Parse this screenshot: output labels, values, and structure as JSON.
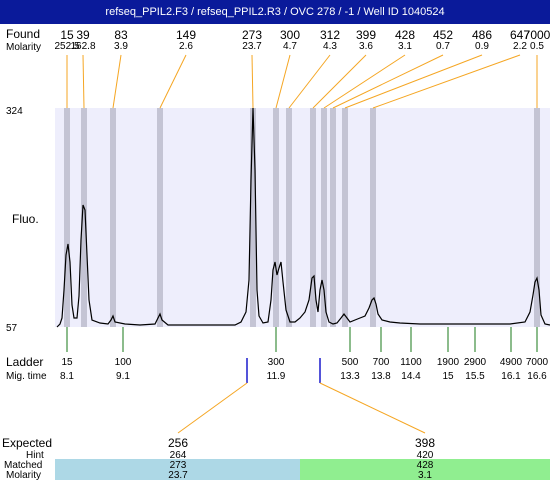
{
  "title": "refseq_PPIL2.F3 / refseq_PPIL2.R3 / OVC 278 / -1 / Well ID 1040524",
  "labels": {
    "found": "Found",
    "molarity": "Molarity",
    "fluo": "Fluo.",
    "ladder": "Ladder",
    "mig_time": "Mig. time",
    "expected": "Expected",
    "hint": "Hint",
    "matched": "Matched",
    "molarity_bottom": "Molarity"
  },
  "y_axis": {
    "max": "324",
    "min": "57"
  },
  "found_peaks": [
    {
      "size": "15",
      "molarity": "252.5"
    },
    {
      "size": "39",
      "molarity": "162.8"
    },
    {
      "size": "83",
      "molarity": "3.9"
    },
    {
      "size": "149",
      "molarity": "2.6"
    },
    {
      "size": "273",
      "molarity": "23.7"
    },
    {
      "size": "300",
      "molarity": "4.7"
    },
    {
      "size": "312",
      "molarity": "4.3"
    },
    {
      "size": "399",
      "molarity": "3.6"
    },
    {
      "size": "428",
      "molarity": "3.1"
    },
    {
      "size": "452",
      "molarity": "0.7"
    },
    {
      "size": "486",
      "molarity": "0.9"
    },
    {
      "size": "647",
      "molarity": "2.2"
    },
    {
      "size": "7000",
      "molarity": "0.5"
    }
  ],
  "ladder": [
    {
      "size": "15",
      "time": "8.1"
    },
    {
      "size": "100",
      "time": "9.1"
    },
    {
      "size": "300",
      "time": "11.9"
    },
    {
      "size": "500",
      "time": "13.3"
    },
    {
      "size": "700",
      "time": "13.8"
    },
    {
      "size": "1100",
      "time": "14.4"
    },
    {
      "size": "1900",
      "time": "15"
    },
    {
      "size": "2900",
      "time": "15.5"
    },
    {
      "size": "4900",
      "time": "16.1"
    },
    {
      "size": "7000",
      "time": "16.6"
    }
  ],
  "expected": [
    {
      "expected": "256",
      "hint": "264",
      "matched": "273",
      "molarity": "23.7",
      "color": "#add8e6"
    },
    {
      "expected": "398",
      "hint": "420",
      "matched": "428",
      "molarity": "3.1",
      "color": "#90ee90"
    }
  ],
  "colors": {
    "title_bg": "#0a1a9a",
    "plot_bg": "#eeeefc",
    "peak_band": "#c4c4d4",
    "connector": "#f5a623",
    "ladder_tick": "#1a7a1a",
    "expected_tick": "#1a1acc"
  }
}
